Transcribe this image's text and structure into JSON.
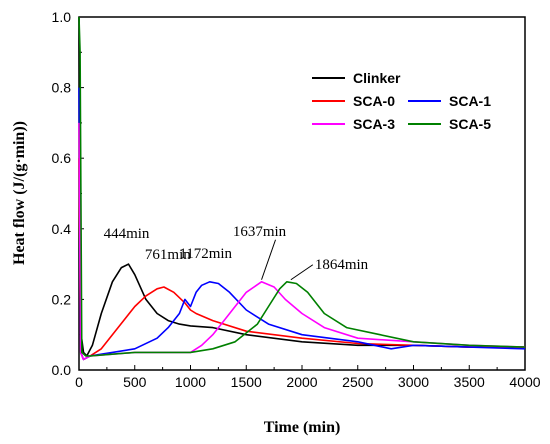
{
  "chart_data": {
    "type": "line",
    "xlabel": "Time (min)",
    "ylabel": "Heat flow (J/(g·min))",
    "xlim": [
      0,
      4000
    ],
    "ylim": [
      0,
      1.0
    ],
    "xticks": [
      "0",
      "500",
      "1000",
      "1500",
      "2000",
      "2500",
      "3000",
      "3500",
      "4000"
    ],
    "yticks": [
      "0.0",
      "0.2",
      "0.4",
      "0.6",
      "0.8",
      "1.0"
    ],
    "grid": false,
    "legend_position": "top-right",
    "series": [
      {
        "name": "Clinker",
        "color": "#000000",
        "x": [
          0,
          10,
          20,
          40,
          70,
          120,
          200,
          300,
          380,
          444,
          500,
          600,
          700,
          800,
          900,
          1000,
          1200,
          1500,
          2000,
          2500,
          3000,
          3500,
          4000
        ],
        "y": [
          1.0,
          0.3,
          0.1,
          0.05,
          0.04,
          0.07,
          0.16,
          0.25,
          0.29,
          0.3,
          0.27,
          0.2,
          0.16,
          0.14,
          0.13,
          0.125,
          0.12,
          0.1,
          0.08,
          0.07,
          0.07,
          0.065,
          0.065
        ]
      },
      {
        "name": "SCA-0",
        "color": "#ff0000",
        "x": [
          0,
          15,
          40,
          100,
          200,
          300,
          400,
          500,
          600,
          700,
          761,
          850,
          950,
          1000,
          1050,
          1200,
          1500,
          2000,
          2500,
          3000,
          3500,
          4000
        ],
        "y": [
          0.6,
          0.05,
          0.03,
          0.04,
          0.06,
          0.1,
          0.14,
          0.18,
          0.21,
          0.23,
          0.235,
          0.22,
          0.19,
          0.17,
          0.16,
          0.14,
          0.11,
          0.09,
          0.075,
          0.07,
          0.065,
          0.065
        ]
      },
      {
        "name": "SCA-1",
        "color": "#0000ff",
        "x": [
          0,
          15,
          40,
          100,
          300,
          500,
          700,
          800,
          900,
          950,
          1000,
          1050,
          1100,
          1172,
          1250,
          1350,
          1500,
          1700,
          2000,
          2500,
          2800,
          3000,
          3500,
          4000
        ],
        "y": [
          0.8,
          0.05,
          0.03,
          0.04,
          0.05,
          0.06,
          0.09,
          0.12,
          0.16,
          0.2,
          0.18,
          0.22,
          0.24,
          0.25,
          0.245,
          0.22,
          0.17,
          0.13,
          0.1,
          0.08,
          0.06,
          0.07,
          0.065,
          0.06
        ]
      },
      {
        "name": "SCA-3",
        "color": "#ff00ff",
        "x": [
          0,
          15,
          40,
          100,
          500,
          1000,
          1100,
          1200,
          1300,
          1400,
          1500,
          1637,
          1750,
          1850,
          2000,
          2200,
          2500,
          3000,
          3500,
          4000
        ],
        "y": [
          0.7,
          0.05,
          0.03,
          0.04,
          0.05,
          0.05,
          0.07,
          0.1,
          0.14,
          0.18,
          0.22,
          0.25,
          0.235,
          0.2,
          0.16,
          0.12,
          0.09,
          0.08,
          0.07,
          0.065
        ]
      },
      {
        "name": "SCA-5",
        "color": "#008000",
        "x": [
          0,
          10,
          25,
          60,
          100,
          500,
          1000,
          1200,
          1400,
          1600,
          1700,
          1800,
          1864,
          1950,
          2050,
          2200,
          2400,
          2700,
          3000,
          3500,
          4000
        ],
        "y": [
          1.0,
          0.9,
          0.05,
          0.04,
          0.04,
          0.05,
          0.05,
          0.06,
          0.08,
          0.13,
          0.18,
          0.23,
          0.25,
          0.245,
          0.22,
          0.16,
          0.12,
          0.1,
          0.08,
          0.07,
          0.065
        ]
      }
    ],
    "annotations": [
      {
        "text": "444min",
        "x": 444,
        "y": 0.3
      },
      {
        "text": "761min",
        "x": 761,
        "y": 0.235
      },
      {
        "text": "1172min",
        "x": 1172,
        "y": 0.25
      },
      {
        "text": "1637min",
        "x": 1637,
        "y": 0.25
      },
      {
        "text": "1864min",
        "x": 1864,
        "y": 0.25
      }
    ]
  }
}
